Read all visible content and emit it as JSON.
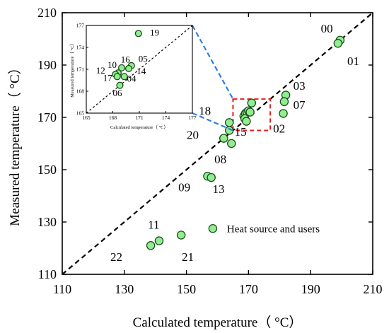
{
  "chart_data": [
    {
      "type": "scatter",
      "title": "",
      "xlabel": "Calculated temperature（ °C）",
      "ylabel": "Measured temperature（ °C）",
      "xlim": [
        110,
        210
      ],
      "ylim": [
        110,
        210
      ],
      "xticks": [
        "110",
        "130",
        "150",
        "170",
        "190",
        "210"
      ],
      "yticks": [
        "110",
        "130",
        "150",
        "170",
        "190",
        "210"
      ],
      "grid": false,
      "reference_line": {
        "style": "dashed",
        "from": [
          110,
          110
        ],
        "to": [
          210,
          210
        ]
      },
      "zoom_box": {
        "style": "dashed",
        "color": "#e02020",
        "x": [
          165,
          177
        ],
        "y": [
          165,
          177
        ]
      },
      "legend": {
        "label": "Heat source and users",
        "placement": "center-right"
      },
      "series": [
        {
          "name": "Heat source and users",
          "color": "#90ee90",
          "points": [
            {
              "id": "00",
              "x": 199.5,
              "y": 199.5
            },
            {
              "id": "01",
              "x": 198.8,
              "y": 198.3
            },
            {
              "id": "02",
              "x": 181.2,
              "y": 171.5
            },
            {
              "id": "03",
              "x": 182.0,
              "y": 178.5
            },
            {
              "id": "07",
              "x": 181.5,
              "y": 176.0
            },
            {
              "id": "18",
              "x": 163.8,
              "y": 168.0
            },
            {
              "id": "15",
              "x": 163.8,
              "y": 165.0
            },
            {
              "id": "20",
              "x": 162.0,
              "y": 162.0
            },
            {
              "id": "08",
              "x": 164.5,
              "y": 160.0
            },
            {
              "id": "09",
              "x": 156.8,
              "y": 147.5
            },
            {
              "id": "13",
              "x": 158.0,
              "y": 147.0
            },
            {
              "id": "11",
              "x": 141.2,
              "y": 122.8
            },
            {
              "id": "22",
              "x": 138.5,
              "y": 121.0
            },
            {
              "id": "21",
              "x": 148.3,
              "y": 125.0
            },
            {
              "id": "",
              "x": 168.5,
              "y": 170.5
            },
            {
              "id": "",
              "x": 169.0,
              "y": 171.5
            },
            {
              "id": "",
              "x": 169.5,
              "y": 172.0
            },
            {
              "id": "",
              "x": 170.0,
              "y": 172.5
            },
            {
              "id": "",
              "x": 170.5,
              "y": 172.0
            },
            {
              "id": "",
              "x": 171.0,
              "y": 175.5
            },
            {
              "id": "",
              "x": 168.8,
              "y": 169.5
            },
            {
              "id": "",
              "x": 169.3,
              "y": 168.5
            }
          ]
        }
      ],
      "labels": [
        {
          "text": "00",
          "x": 193.3,
          "y": 202.5
        },
        {
          "text": "01",
          "x": 201.8,
          "y": 190.0
        },
        {
          "text": "03",
          "x": 184.4,
          "y": 180.6
        },
        {
          "text": "07",
          "x": 184.4,
          "y": 173.2
        },
        {
          "text": "02",
          "x": 177.9,
          "y": 164.2
        },
        {
          "text": "18",
          "x": 154.0,
          "y": 171.0
        },
        {
          "text": "15",
          "x": 165.5,
          "y": 163.0
        },
        {
          "text": "20",
          "x": 150.1,
          "y": 161.7
        },
        {
          "text": "08",
          "x": 159.0,
          "y": 152.5
        },
        {
          "text": "09",
          "x": 147.4,
          "y": 141.7
        },
        {
          "text": "13",
          "x": 158.4,
          "y": 141.1
        },
        {
          "text": "11",
          "x": 137.6,
          "y": 127.5
        },
        {
          "text": "22",
          "x": 125.5,
          "y": 115.2
        },
        {
          "text": "21",
          "x": 148.5,
          "y": 115.2
        }
      ]
    },
    {
      "type": "scatter",
      "title": "",
      "xlabel": "Calculated temperature（ °C）",
      "ylabel": "Measured temperature（ °C）",
      "xlim": [
        165,
        177
      ],
      "ylim": [
        165,
        177
      ],
      "xticks": [
        "165",
        "168",
        "171",
        "174",
        "177"
      ],
      "yticks": [
        "165",
        "168",
        "171",
        "174",
        "177"
      ],
      "reference_line": {
        "style": "dashed",
        "from": [
          165,
          165
        ],
        "to": [
          177,
          177
        ]
      },
      "series": [
        {
          "name": "Heat source and users",
          "color": "#90ee90",
          "points": [
            {
              "id": "19",
              "x": 170.9,
              "y": 175.9
            },
            {
              "id": "05",
              "x": 170.1,
              "y": 171.5
            },
            {
              "id": "16",
              "x": 169.0,
              "y": 171.2
            },
            {
              "id": "10",
              "x": 168.6,
              "y": 170.5
            },
            {
              "id": "12",
              "x": 168.3,
              "y": 170.3
            },
            {
              "id": "17",
              "x": 168.5,
              "y": 170.0
            },
            {
              "id": "14",
              "x": 169.8,
              "y": 171.1
            },
            {
              "id": "04",
              "x": 169.3,
              "y": 170.0
            },
            {
              "id": "06",
              "x": 168.8,
              "y": 168.8
            }
          ]
        }
      ],
      "labels": [
        {
          "text": "19",
          "x": 172.2,
          "y": 175.6
        },
        {
          "text": "05",
          "x": 170.9,
          "y": 172.0
        },
        {
          "text": "16",
          "x": 168.9,
          "y": 171.9
        },
        {
          "text": "10",
          "x": 167.4,
          "y": 171.2
        },
        {
          "text": "12",
          "x": 166.1,
          "y": 170.4
        },
        {
          "text": "14",
          "x": 170.7,
          "y": 170.3
        },
        {
          "text": "17",
          "x": 166.9,
          "y": 169.4
        },
        {
          "text": "04",
          "x": 169.6,
          "y": 169.3
        },
        {
          "text": "06",
          "x": 168.0,
          "y": 167.3
        }
      ]
    }
  ]
}
